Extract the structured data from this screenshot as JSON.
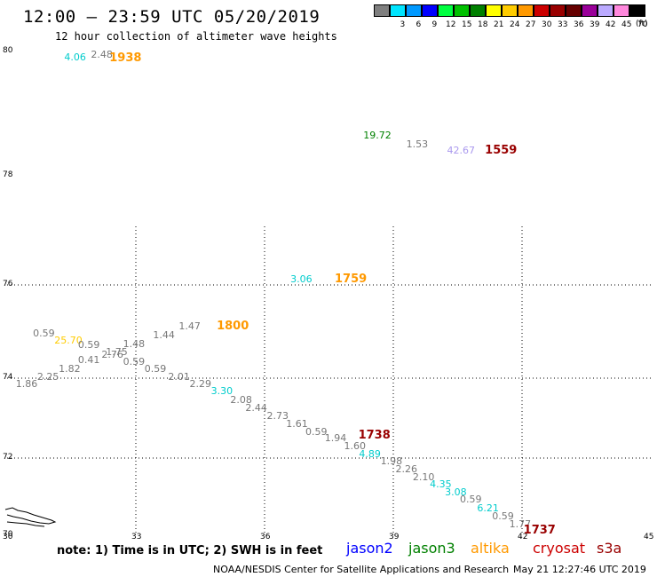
{
  "header": {
    "title": "12:00 – 23:59 UTC 05/20/2019",
    "subtitle": "12 hour collection of altimeter wave heights"
  },
  "scale": {
    "cells": [
      {
        "color": "#7f7f7f",
        "label": ""
      },
      {
        "color": "#00e5ff",
        "label": "3"
      },
      {
        "color": "#0099ff",
        "label": "6"
      },
      {
        "color": "#0000ff",
        "label": "9"
      },
      {
        "color": "#00ff40",
        "label": "12"
      },
      {
        "color": "#00c000",
        "label": "15"
      },
      {
        "color": "#008000",
        "label": "18"
      },
      {
        "color": "#ffff00",
        "label": "21"
      },
      {
        "color": "#ffcc00",
        "label": "24"
      },
      {
        "color": "#ff9900",
        "label": "27"
      },
      {
        "color": "#cc0000",
        "label": "30"
      },
      {
        "color": "#990000",
        "label": "33"
      },
      {
        "color": "#660000",
        "label": "36"
      },
      {
        "color": "#990099",
        "label": "39"
      },
      {
        "color": "#bbaaff",
        "label": "42"
      },
      {
        "color": "#ff88dd",
        "label": "45"
      },
      {
        "color": "#000000",
        "label": "70"
      }
    ],
    "unit": "(ft)"
  },
  "map": {
    "lon_ticks": [
      "30",
      "33",
      "36",
      "39",
      "42",
      "45"
    ],
    "lat_ticks": [
      "70",
      "72",
      "74",
      "76",
      "78",
      "80"
    ]
  },
  "observations": [
    {
      "v": "4.06",
      "lon": 31.58,
      "lat": 79.9,
      "c": "#00cccc"
    },
    {
      "v": "2.48",
      "lon": 32.2,
      "lat": 79.95,
      "c": "#777777"
    },
    {
      "v": "19.72",
      "lon": 38.55,
      "lat": 78.65,
      "c": "#008000"
    },
    {
      "v": "1.53",
      "lon": 39.55,
      "lat": 78.5,
      "c": "#777777"
    },
    {
      "v": "42.67",
      "lon": 40.5,
      "lat": 78.4,
      "c": "#aa99ee"
    },
    {
      "v": "3.06",
      "lon": 36.85,
      "lat": 76.1,
      "c": "#00cccc"
    },
    {
      "v": "0.59",
      "lon": 30.85,
      "lat": 74.95,
      "c": "#777777"
    },
    {
      "v": "25.70",
      "lon": 31.35,
      "lat": 74.8,
      "c": "#ffcc00"
    },
    {
      "v": "0.59",
      "lon": 31.9,
      "lat": 74.7,
      "c": "#777777"
    },
    {
      "v": "1.48",
      "lon": 32.95,
      "lat": 74.72,
      "c": "#777777"
    },
    {
      "v": "1.44",
      "lon": 33.65,
      "lat": 74.92,
      "c": "#777777"
    },
    {
      "v": "1.47",
      "lon": 34.25,
      "lat": 75.1,
      "c": "#777777"
    },
    {
      "v": "1.75",
      "lon": 32.55,
      "lat": 74.55,
      "c": "#777777"
    },
    {
      "v": "2.76",
      "lon": 32.45,
      "lat": 74.5,
      "c": "#777777"
    },
    {
      "v": "0.41",
      "lon": 31.9,
      "lat": 74.38,
      "c": "#777777"
    },
    {
      "v": "0.59",
      "lon": 32.95,
      "lat": 74.35,
      "c": "#777777"
    },
    {
      "v": "1.82",
      "lon": 31.45,
      "lat": 74.2,
      "c": "#777777"
    },
    {
      "v": "0.59",
      "lon": 33.45,
      "lat": 74.2,
      "c": "#777777"
    },
    {
      "v": "2.25",
      "lon": 30.95,
      "lat": 74.02,
      "c": "#777777"
    },
    {
      "v": "2.01",
      "lon": 34.0,
      "lat": 74.02,
      "c": "#777777"
    },
    {
      "v": "1.86",
      "lon": 30.45,
      "lat": 73.85,
      "c": "#777777"
    },
    {
      "v": "2.29",
      "lon": 34.5,
      "lat": 73.85,
      "c": "#777777"
    },
    {
      "v": "3.30",
      "lon": 35.0,
      "lat": 73.66,
      "c": "#00cccc"
    },
    {
      "v": "2.08",
      "lon": 35.45,
      "lat": 73.45,
      "c": "#777777"
    },
    {
      "v": "2.44",
      "lon": 35.8,
      "lat": 73.25,
      "c": "#777777"
    },
    {
      "v": "2.73",
      "lon": 36.3,
      "lat": 73.05,
      "c": "#777777"
    },
    {
      "v": "1.61",
      "lon": 36.75,
      "lat": 72.85,
      "c": "#777777"
    },
    {
      "v": "0.59",
      "lon": 37.2,
      "lat": 72.65,
      "c": "#777777"
    },
    {
      "v": "1.94",
      "lon": 37.65,
      "lat": 72.5,
      "c": "#777777"
    },
    {
      "v": "1.60",
      "lon": 38.1,
      "lat": 72.28,
      "c": "#777777"
    },
    {
      "v": "4.89",
      "lon": 38.45,
      "lat": 72.08,
      "c": "#00cccc"
    },
    {
      "v": "1.98",
      "lon": 38.95,
      "lat": 71.9,
      "c": "#777777"
    },
    {
      "v": "2.26",
      "lon": 39.3,
      "lat": 71.7,
      "c": "#777777"
    },
    {
      "v": "2.10",
      "lon": 39.7,
      "lat": 71.5,
      "c": "#777777"
    },
    {
      "v": "4.35",
      "lon": 40.1,
      "lat": 71.3,
      "c": "#00cccc"
    },
    {
      "v": "3.08",
      "lon": 40.45,
      "lat": 71.1,
      "c": "#00cccc"
    },
    {
      "v": "0.59",
      "lon": 40.8,
      "lat": 70.92,
      "c": "#777777"
    },
    {
      "v": "6.21",
      "lon": 41.2,
      "lat": 70.7,
      "c": "#00cccc"
    },
    {
      "v": "0.59",
      "lon": 41.55,
      "lat": 70.48,
      "c": "#777777"
    },
    {
      "v": "1.77",
      "lon": 41.95,
      "lat": 70.28,
      "c": "#777777"
    }
  ],
  "pass_times": [
    {
      "t": "1938",
      "lon": 32.55,
      "lat": 79.88,
      "c": "#ff9900"
    },
    {
      "t": "1559",
      "lon": 41.3,
      "lat": 78.4,
      "c": "#990000"
    },
    {
      "t": "1759",
      "lon": 37.8,
      "lat": 76.1,
      "c": "#ff9900"
    },
    {
      "t": "1800",
      "lon": 35.05,
      "lat": 75.1,
      "c": "#ff9900"
    },
    {
      "t": "1738",
      "lon": 38.35,
      "lat": 72.55,
      "c": "#990000"
    },
    {
      "t": "1737",
      "lon": 42.2,
      "lat": 70.12,
      "c": "#990000"
    }
  ],
  "footer": {
    "note": "note: 1) Time is in UTC; 2) SWH is in feet",
    "legend": [
      {
        "label": "jason2",
        "color": "#0000ff"
      },
      {
        "label": "jason3",
        "color": "#008000"
      },
      {
        "label": "altika",
        "color": "#ff9900"
      },
      {
        "label": "cryosat",
        "color": "#cc0000"
      },
      {
        "label": "s3a",
        "color": "#990000"
      }
    ],
    "credit": "NOAA/NESDIS Center for Satellite Applications and Research",
    "timestamp": "May 21 12:27:46 UTC 2019"
  }
}
